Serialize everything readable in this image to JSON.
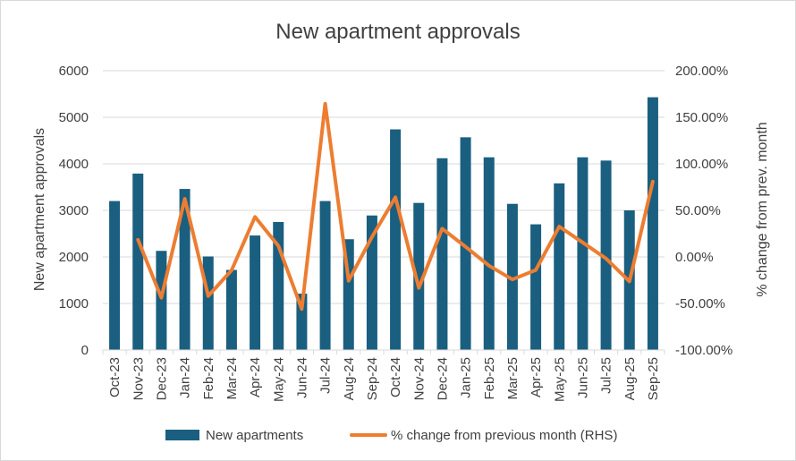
{
  "chart_data": {
    "type": "bar+line",
    "title": "New apartment approvals",
    "categories": [
      "Oct-23",
      "Nov-23",
      "Dec-23",
      "Jan-24",
      "Feb-24",
      "Mar-24",
      "Apr-24",
      "May-24",
      "Jun-24",
      "Jul-24",
      "Aug-24",
      "Sep-24",
      "Oct-24",
      "Nov-24",
      "Dec-24",
      "Jan-25",
      "Feb-25",
      "Mar-25",
      "Apr-25",
      "May-25",
      "Jun-25",
      "Jul-25",
      "Aug-25",
      "Sep-25"
    ],
    "series": [
      {
        "name": "New apartments",
        "type": "bar",
        "axis": "left",
        "color": "#1a5f80",
        "values": [
          3200,
          3790,
          2130,
          3460,
          2010,
          1720,
          2460,
          2750,
          1210,
          3200,
          2380,
          2890,
          4740,
          3160,
          4120,
          4570,
          4140,
          3140,
          2700,
          3580,
          4140,
          4070,
          3000,
          5430
        ]
      },
      {
        "name": "% change from previous month (RHS)",
        "type": "line",
        "axis": "right",
        "color": "#ed7d31",
        "values": [
          null,
          18.4,
          -43.8,
          62.4,
          -41.9,
          -14.4,
          43.0,
          11.8,
          -56.0,
          164.5,
          -25.6,
          21.4,
          64.0,
          -33.3,
          30.4,
          10.9,
          -9.4,
          -24.2,
          -14.0,
          32.6,
          15.6,
          -1.7,
          -26.3,
          81.0
        ]
      }
    ],
    "left_axis": {
      "label": "New apartment approvals",
      "min": 0,
      "max": 6000,
      "ticks": [
        0,
        1000,
        2000,
        3000,
        4000,
        5000,
        6000
      ],
      "tick_labels": [
        "0",
        "1000",
        "2000",
        "3000",
        "4000",
        "5000",
        "6000"
      ]
    },
    "right_axis": {
      "label": "% change from prev. month",
      "min": -100,
      "max": 200,
      "ticks": [
        -100,
        -50,
        0,
        50,
        100,
        150,
        200
      ],
      "tick_labels": [
        "-100.00%",
        "-50.00%",
        "0.00%",
        "50.00%",
        "100.00%",
        "150.00%",
        "200.00%"
      ]
    },
    "grid": true,
    "legend": {
      "position": "bottom",
      "entries": [
        "New apartments",
        "% change from previous month (RHS)"
      ]
    }
  }
}
